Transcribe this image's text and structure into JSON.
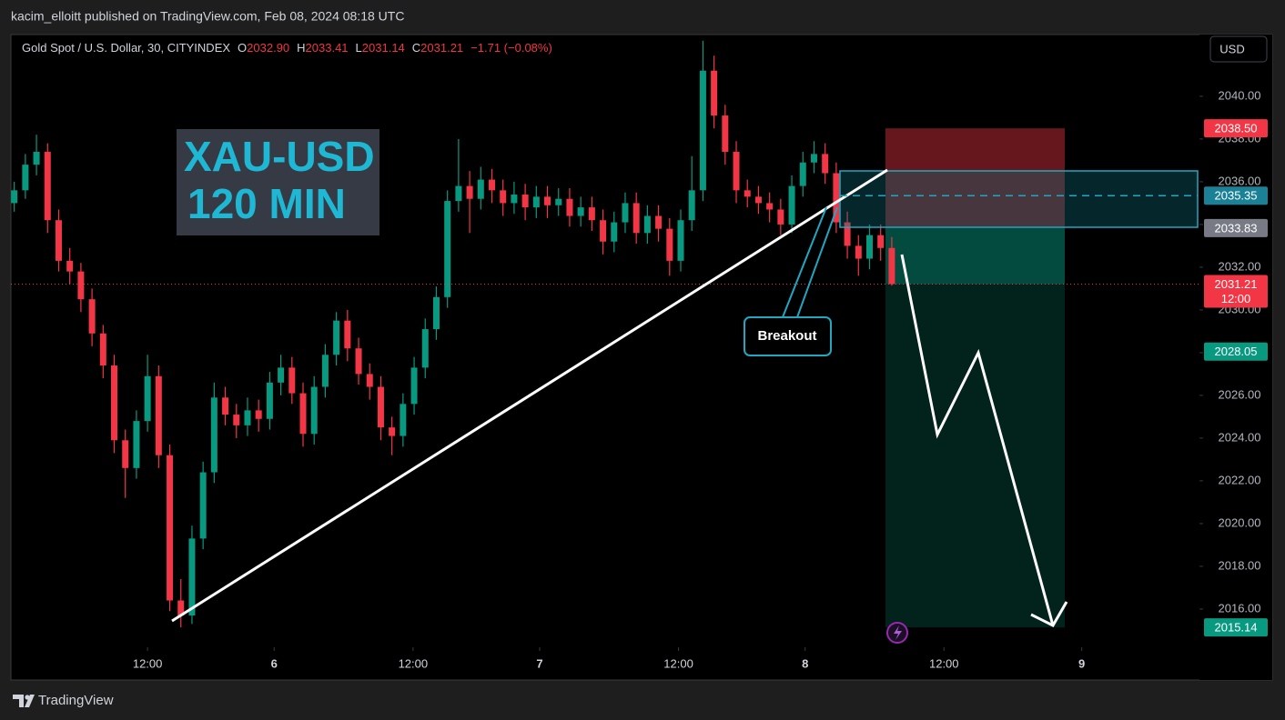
{
  "header": {
    "published": "kacim_elloitt published on TradingView.com, Feb 08, 2024 08:18 UTC"
  },
  "chart_data": {
    "type": "candlestick",
    "title": "Gold Spot / U.S. Dollar, 30, CITYINDEX",
    "ohlc_header": [
      {
        "key": "O",
        "value": 2032.9,
        "label": "2032.90"
      },
      {
        "key": "H",
        "value": 2033.41,
        "label": "2033.41"
      },
      {
        "key": "L",
        "value": 2031.14,
        "label": "2031.14"
      },
      {
        "key": "C",
        "value": 2031.21,
        "label": "2031.21"
      }
    ],
    "change": {
      "value": -1.71,
      "label": "−1.71 (−0.08%)"
    },
    "currency": "USD",
    "up_color": "#089981",
    "down_color": "#f23645",
    "x": [
      0,
      1,
      2,
      3,
      4,
      5,
      6,
      7,
      8,
      9,
      10,
      11,
      12,
      13,
      14,
      15,
      16,
      17,
      18,
      19,
      20,
      21,
      22,
      23,
      24,
      25,
      26,
      27,
      28,
      29,
      30,
      31,
      32,
      33,
      34,
      35,
      36,
      37,
      38,
      39,
      40,
      41,
      42,
      43,
      44,
      45,
      46,
      47,
      48,
      49,
      50,
      51,
      52,
      53,
      54,
      55,
      56,
      57,
      58,
      59,
      60,
      61,
      62,
      63,
      64,
      65,
      66,
      67,
      68,
      69,
      70,
      71,
      72,
      73,
      74,
      75,
      76,
      77,
      78,
      79
    ],
    "open": [
      2035.0,
      2035.6,
      2036.8,
      2037.4,
      2034.2,
      2032.3,
      2031.8,
      2030.5,
      2028.9,
      2027.4,
      2023.9,
      2022.6,
      2024.8,
      2026.9,
      2023.2,
      2016.4,
      2015.7,
      2019.3,
      2022.4,
      2025.9,
      2025.1,
      2024.6,
      2025.3,
      2024.9,
      2026.6,
      2027.3,
      2026.1,
      2024.2,
      2026.4,
      2027.9,
      2029.5,
      2028.2,
      2027.0,
      2026.4,
      2024.5,
      2024.1,
      2025.6,
      2027.3,
      2029.1,
      2030.6,
      2035.1,
      2035.8,
      2035.2,
      2036.1,
      2035.6,
      2035.0,
      2035.4,
      2034.8,
      2035.3,
      2034.9,
      2035.2,
      2034.4,
      2034.8,
      2034.2,
      2033.2,
      2034.1,
      2035.0,
      2033.6,
      2034.4,
      2033.8,
      2032.3,
      2034.2,
      2035.6,
      2041.2,
      2039.1,
      2037.4,
      2035.6,
      2035.3,
      2035.0,
      2034.7,
      2034.0,
      2035.8,
      2036.9,
      2037.3,
      2036.4,
      2034.1,
      2033.0,
      2032.4,
      2033.5,
      2032.9
    ],
    "high": [
      2036.0,
      2037.3,
      2038.2,
      2037.8,
      2034.7,
      2032.9,
      2032.2,
      2031.0,
      2029.3,
      2027.9,
      2024.4,
      2025.3,
      2027.9,
      2027.4,
      2023.7,
      2017.4,
      2019.9,
      2022.9,
      2026.6,
      2026.4,
      2025.6,
      2025.9,
      2025.8,
      2027.1,
      2027.9,
      2027.8,
      2026.6,
      2026.9,
      2028.4,
      2029.9,
      2030.0,
      2028.7,
      2027.5,
      2026.9,
      2025.0,
      2026.1,
      2027.8,
      2029.6,
      2031.1,
      2035.6,
      2038.0,
      2036.5,
      2036.7,
      2036.6,
      2036.1,
      2036.0,
      2035.9,
      2035.8,
      2035.8,
      2035.7,
      2035.7,
      2035.3,
      2035.3,
      2034.7,
      2034.6,
      2035.5,
      2035.5,
      2034.9,
      2034.9,
      2034.3,
      2034.7,
      2037.2,
      2042.6,
      2041.9,
      2039.6,
      2037.9,
      2036.1,
      2035.8,
      2035.5,
      2035.2,
      2036.3,
      2037.4,
      2037.9,
      2037.8,
      2036.9,
      2034.6,
      2033.5,
      2034.0,
      2034.0,
      2033.41
    ],
    "low": [
      2034.6,
      2035.2,
      2036.3,
      2033.6,
      2031.8,
      2031.2,
      2029.9,
      2028.3,
      2026.8,
      2023.3,
      2021.2,
      2022.1,
      2024.3,
      2022.6,
      2015.9,
      2015.14,
      2015.3,
      2018.8,
      2021.9,
      2024.6,
      2024.0,
      2024.1,
      2024.3,
      2024.4,
      2026.0,
      2025.6,
      2023.6,
      2023.7,
      2025.9,
      2027.4,
      2027.6,
      2026.5,
      2025.8,
      2023.9,
      2023.2,
      2023.6,
      2025.1,
      2026.8,
      2028.6,
      2030.1,
      2034.6,
      2033.6,
      2034.7,
      2035.0,
      2034.4,
      2034.5,
      2034.2,
      2034.3,
      2034.3,
      2034.4,
      2033.9,
      2033.9,
      2033.7,
      2032.6,
      2032.7,
      2033.6,
      2033.1,
      2033.1,
      2033.2,
      2031.6,
      2031.8,
      2033.7,
      2035.1,
      2038.5,
      2036.8,
      2035.0,
      2034.8,
      2034.5,
      2034.1,
      2033.5,
      2033.6,
      2035.3,
      2036.4,
      2035.9,
      2033.6,
      2032.4,
      2031.6,
      2031.9,
      2032.3,
      2031.14
    ],
    "close": [
      2035.6,
      2036.8,
      2037.4,
      2034.2,
      2032.3,
      2031.8,
      2030.5,
      2028.9,
      2027.4,
      2023.9,
      2022.6,
      2024.8,
      2026.9,
      2023.2,
      2016.4,
      2015.7,
      2019.3,
      2022.4,
      2025.9,
      2025.1,
      2024.6,
      2025.3,
      2024.9,
      2026.6,
      2027.3,
      2026.1,
      2024.2,
      2026.4,
      2027.9,
      2029.5,
      2028.2,
      2027.0,
      2026.4,
      2024.5,
      2024.1,
      2025.6,
      2027.3,
      2029.1,
      2030.6,
      2035.1,
      2035.8,
      2035.2,
      2036.1,
      2035.6,
      2035.0,
      2035.4,
      2034.8,
      2035.3,
      2034.9,
      2035.2,
      2034.4,
      2034.8,
      2034.2,
      2033.2,
      2034.1,
      2035.0,
      2033.6,
      2034.4,
      2033.8,
      2032.3,
      2034.2,
      2035.6,
      2041.2,
      2039.1,
      2037.4,
      2035.6,
      2035.3,
      2035.0,
      2034.7,
      2034.0,
      2035.8,
      2036.9,
      2037.3,
      2036.4,
      2034.1,
      2033.0,
      2032.4,
      2033.5,
      2032.9,
      2031.21
    ],
    "xlim": [
      -0.3,
      106.7
    ],
    "xticks": [
      {
        "value": 12,
        "label": "12:00"
      },
      {
        "value": 23.4,
        "label": "6"
      },
      {
        "value": 35.9,
        "label": "12:00"
      },
      {
        "value": 47.3,
        "label": "7"
      },
      {
        "value": 59.8,
        "label": "12:00"
      },
      {
        "value": 71.2,
        "label": "8"
      },
      {
        "value": 83.7,
        "label": "12:00"
      },
      {
        "value": 96.1,
        "label": "9"
      }
    ],
    "ylim": [
      2014.21,
      2042.89
    ],
    "yticks": [
      {
        "value": 2016,
        "label": "2016.00"
      },
      {
        "value": 2018,
        "label": "2018.00"
      },
      {
        "value": 2020,
        "label": "2020.00"
      },
      {
        "value": 2022,
        "label": "2022.00"
      },
      {
        "value": 2024,
        "label": "2024.00"
      },
      {
        "value": 2026,
        "label": "2026.00"
      },
      {
        "value": 2028,
        "label": "2028.00"
      },
      {
        "value": 2030,
        "label": "2030.00"
      },
      {
        "value": 2032,
        "label": "2032.00"
      },
      {
        "value": 2034,
        "label": "2034.00"
      },
      {
        "value": 2036,
        "label": "2036.00"
      },
      {
        "value": 2038,
        "label": "2038.00"
      },
      {
        "value": 2040,
        "label": "2040.00"
      }
    ],
    "grid": false,
    "price_labels": [
      {
        "value": 2038.5,
        "label": "2038.50",
        "color": "#f23645"
      },
      {
        "value": 2035.35,
        "label": "2035.35",
        "color": "#1b8197"
      },
      {
        "value": 2033.83,
        "label": "2033.83",
        "color": "#787b86"
      },
      {
        "value": 2028.05,
        "label": "2028.05",
        "color": "#089981"
      },
      {
        "value": 2015.14,
        "label": "2015.14",
        "color": "#089981"
      }
    ],
    "last_price": {
      "value": 2031.21,
      "label": "2031.21",
      "countdown": "12:00",
      "color": "#f23645"
    },
    "annotations": {
      "symbol": "XAU-USD",
      "timeframe": "120 MIN",
      "breakout": "Breakout"
    }
  },
  "footer": {
    "brand": "TradingView"
  }
}
